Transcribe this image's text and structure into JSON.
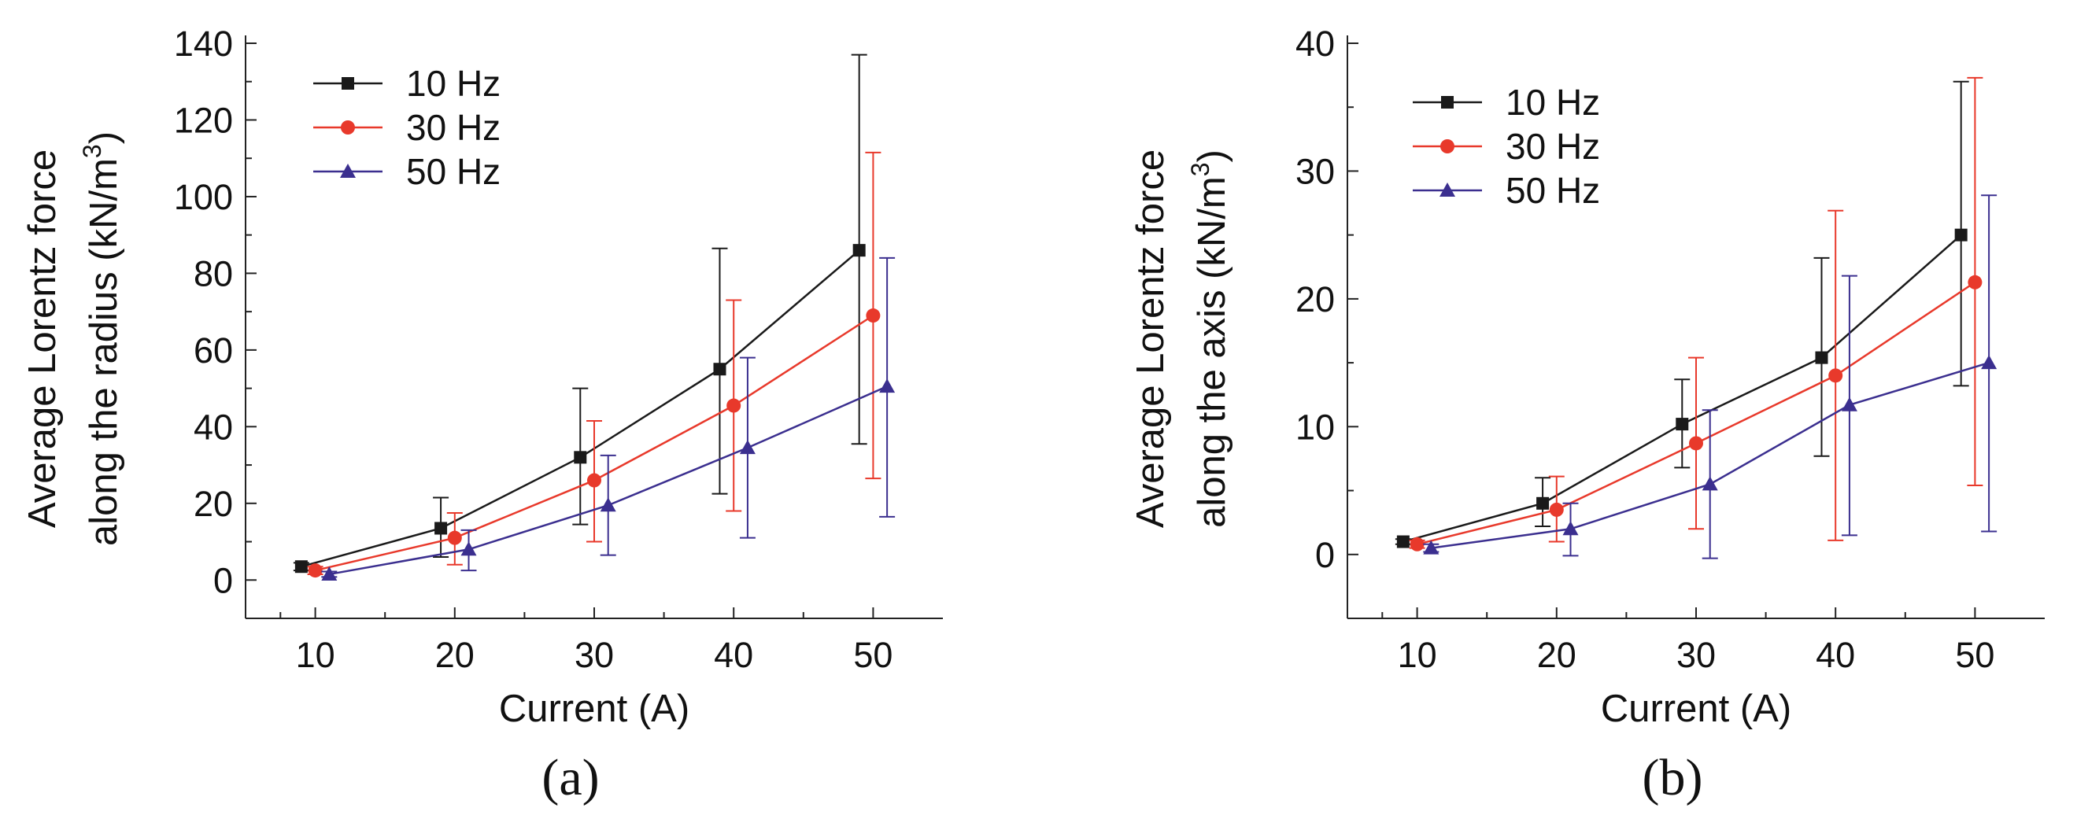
{
  "chart_data": [
    {
      "type": "line",
      "panel_label": "(a)",
      "xlabel": "Current (A)",
      "ylabel": [
        "Average Lorentz force",
        "along the radius (kN/m",
        "3",
        ")"
      ],
      "xlim": [
        5,
        55
      ],
      "ylim": [
        -10,
        140
      ],
      "x_ticks": [
        10,
        20,
        30,
        40,
        50
      ],
      "y_ticks": [
        0,
        20,
        40,
        60,
        80,
        100,
        120,
        140
      ],
      "legend_position": "top-left",
      "series": [
        {
          "name": "10 Hz",
          "color": "#1a1a1a",
          "marker": "square",
          "x": [
            9,
            19,
            29,
            39,
            49
          ],
          "y": [
            3.5,
            13.5,
            32,
            55,
            86
          ],
          "err_low": [
            2.5,
            6,
            14.5,
            22.5,
            35.5
          ],
          "err_high": [
            4.5,
            21.5,
            50,
            86.5,
            137
          ]
        },
        {
          "name": "30 Hz",
          "color": "#e8392b",
          "marker": "circle",
          "x": [
            10,
            20,
            30,
            40,
            50
          ],
          "y": [
            2.5,
            11,
            26,
            45.5,
            69
          ],
          "err_low": [
            1.5,
            4,
            10,
            18,
            26.5
          ],
          "err_high": [
            3.5,
            17.5,
            41.5,
            73,
            111.5
          ]
        },
        {
          "name": "50 Hz",
          "color": "#3b2f8f",
          "marker": "triangle",
          "x": [
            11,
            21,
            31,
            41,
            51
          ],
          "y": [
            1.5,
            8,
            19.5,
            34.5,
            50.5
          ],
          "err_low": [
            0.8,
            2.5,
            6.5,
            11,
            16.5
          ],
          "err_high": [
            2.2,
            13,
            32.5,
            58,
            84
          ]
        }
      ]
    },
    {
      "type": "line",
      "panel_label": "(b)",
      "xlabel": "Current (A)",
      "ylabel": [
        "Average Lorentz force",
        "along the axis (kN/m",
        "3",
        ")"
      ],
      "xlim": [
        5,
        55
      ],
      "ylim": [
        -5,
        40
      ],
      "x_ticks": [
        10,
        20,
        30,
        40,
        50
      ],
      "y_ticks": [
        0,
        10,
        20,
        30,
        40
      ],
      "legend_position": "top-left",
      "series": [
        {
          "name": "10 Hz",
          "color": "#1a1a1a",
          "marker": "square",
          "x": [
            9,
            19,
            29,
            39,
            49
          ],
          "y": [
            1,
            4,
            10.2,
            15.4,
            25
          ],
          "err_low": [
            0.8,
            2.2,
            6.8,
            7.7,
            13.2
          ],
          "err_high": [
            1.2,
            6,
            13.7,
            23.2,
            37
          ]
        },
        {
          "name": "30 Hz",
          "color": "#e8392b",
          "marker": "circle",
          "x": [
            10,
            20,
            30,
            40,
            50
          ],
          "y": [
            0.8,
            3.5,
            8.7,
            14,
            21.3
          ],
          "err_low": [
            0.5,
            1,
            2,
            1.1,
            5.4
          ],
          "err_high": [
            1.1,
            6.1,
            15.4,
            26.9,
            37.3
          ]
        },
        {
          "name": "50 Hz",
          "color": "#3b2f8f",
          "marker": "triangle",
          "x": [
            11,
            21,
            31,
            41,
            51
          ],
          "y": [
            0.5,
            2,
            5.5,
            11.7,
            15
          ],
          "err_low": [
            0.2,
            -0.1,
            -0.3,
            1.5,
            1.8
          ],
          "err_high": [
            0.8,
            4,
            11.3,
            21.8,
            28.1
          ]
        }
      ]
    }
  ]
}
